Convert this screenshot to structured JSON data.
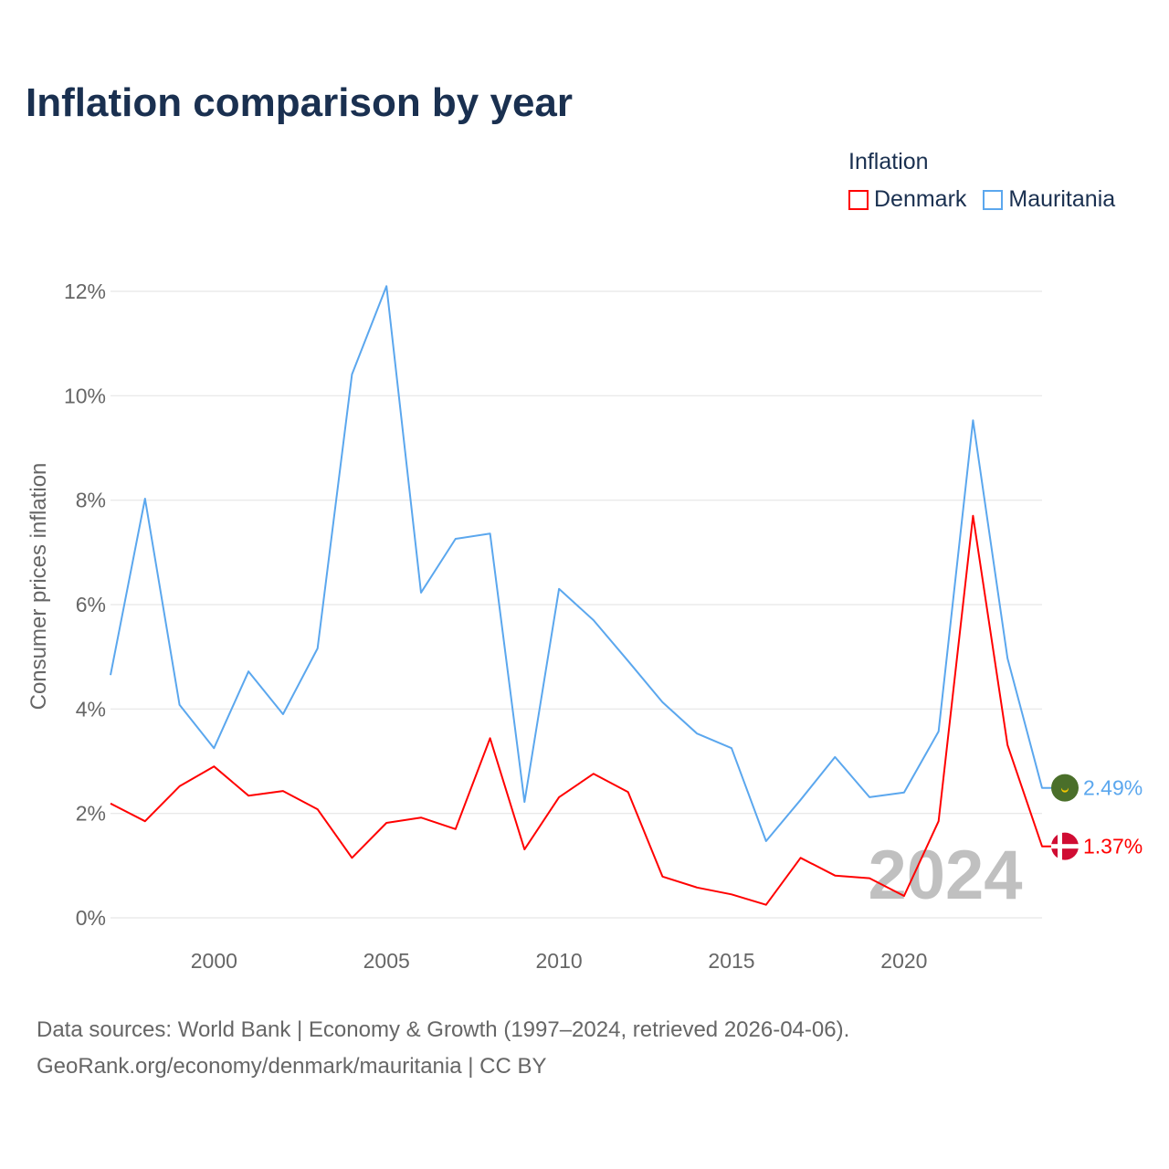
{
  "title": "Inflation comparison by year",
  "legend": {
    "title": "Inflation",
    "items": [
      {
        "label": "Denmark",
        "color": "#ff0000"
      },
      {
        "label": "Mauritania",
        "color": "#5ba7ee"
      }
    ]
  },
  "watermark_year": "2024",
  "footer": {
    "line1": "Data sources: World Bank | Economy & Growth (1997–2024, retrieved 2026-04-06).",
    "line2": "GeoRank.org/economy/denmark/mauritania | CC BY"
  },
  "chart_data": {
    "type": "line",
    "title": "Inflation comparison by year",
    "xlabel": "",
    "ylabel": "Consumer prices inflation",
    "x": [
      1997,
      1998,
      1999,
      2000,
      2001,
      2002,
      2003,
      2004,
      2005,
      2006,
      2007,
      2008,
      2009,
      2010,
      2011,
      2012,
      2013,
      2014,
      2015,
      2016,
      2017,
      2018,
      2019,
      2020,
      2021,
      2022,
      2023,
      2024
    ],
    "xlim": [
      1997,
      2024
    ],
    "ylim": [
      0,
      12
    ],
    "xticks": [
      "2000",
      "2005",
      "2010",
      "2015",
      "2020"
    ],
    "yticks": [
      "0%",
      "2%",
      "4%",
      "6%",
      "8%",
      "10%",
      "12%"
    ],
    "grid": true,
    "legend_position": "top-right",
    "series": [
      {
        "name": "Denmark",
        "color": "#ff0000",
        "end_label": "1.37%",
        "values": [
          2.19,
          1.85,
          2.52,
          2.9,
          2.34,
          2.43,
          2.08,
          1.15,
          1.82,
          1.92,
          1.7,
          3.44,
          1.31,
          2.31,
          2.76,
          2.41,
          0.79,
          0.58,
          0.45,
          0.25,
          1.15,
          0.81,
          0.76,
          0.42,
          1.85,
          7.7,
          3.31,
          1.37
        ]
      },
      {
        "name": "Mauritania",
        "color": "#5ba7ee",
        "end_label": "2.49%",
        "values": [
          4.65,
          8.03,
          4.08,
          3.25,
          4.72,
          3.9,
          5.16,
          10.41,
          12.1,
          6.23,
          7.26,
          7.36,
          2.22,
          6.3,
          5.7,
          4.92,
          4.13,
          3.53,
          3.25,
          1.47,
          2.26,
          3.08,
          2.31,
          2.4,
          3.57,
          9.53,
          4.97,
          2.49
        ]
      }
    ]
  }
}
